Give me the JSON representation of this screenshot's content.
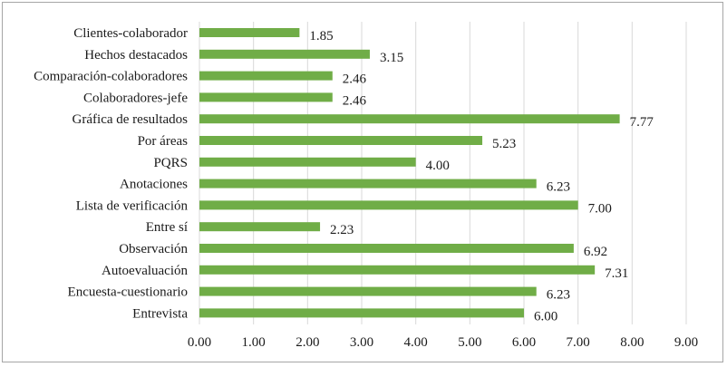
{
  "chart_data": {
    "type": "bar",
    "orientation": "horizontal",
    "categories": [
      "Clientes-colaborador",
      "Hechos destacados",
      "Comparación-colaboradores",
      "Colaboradores-jefe",
      "Gráfica de resultados",
      "Por áreas",
      "PQRS",
      "Anotaciones",
      "Lista de verificación",
      "Entre sí",
      "Observación",
      "Autoevaluación",
      "Encuesta-cuestionario",
      "Entrevista"
    ],
    "values": [
      1.85,
      3.15,
      2.46,
      2.46,
      7.77,
      5.23,
      4.0,
      6.23,
      7.0,
      2.23,
      6.92,
      7.31,
      6.23,
      6.0
    ],
    "value_labels": [
      "1.85",
      "3.15",
      "2.46",
      "2.46",
      "7.77",
      "5.23",
      "4.00",
      "6.23",
      "7.00",
      "2.23",
      "6.92",
      "7.31",
      "6.23",
      "6.00"
    ],
    "x_ticks": [
      "0.00",
      "1.00",
      "2.00",
      "3.00",
      "4.00",
      "5.00",
      "6.00",
      "7.00",
      "8.00",
      "9.00"
    ],
    "xlim": [
      0,
      9
    ],
    "grid": true,
    "bar_color": "#70ad47",
    "title": "",
    "xlabel": "",
    "ylabel": ""
  }
}
